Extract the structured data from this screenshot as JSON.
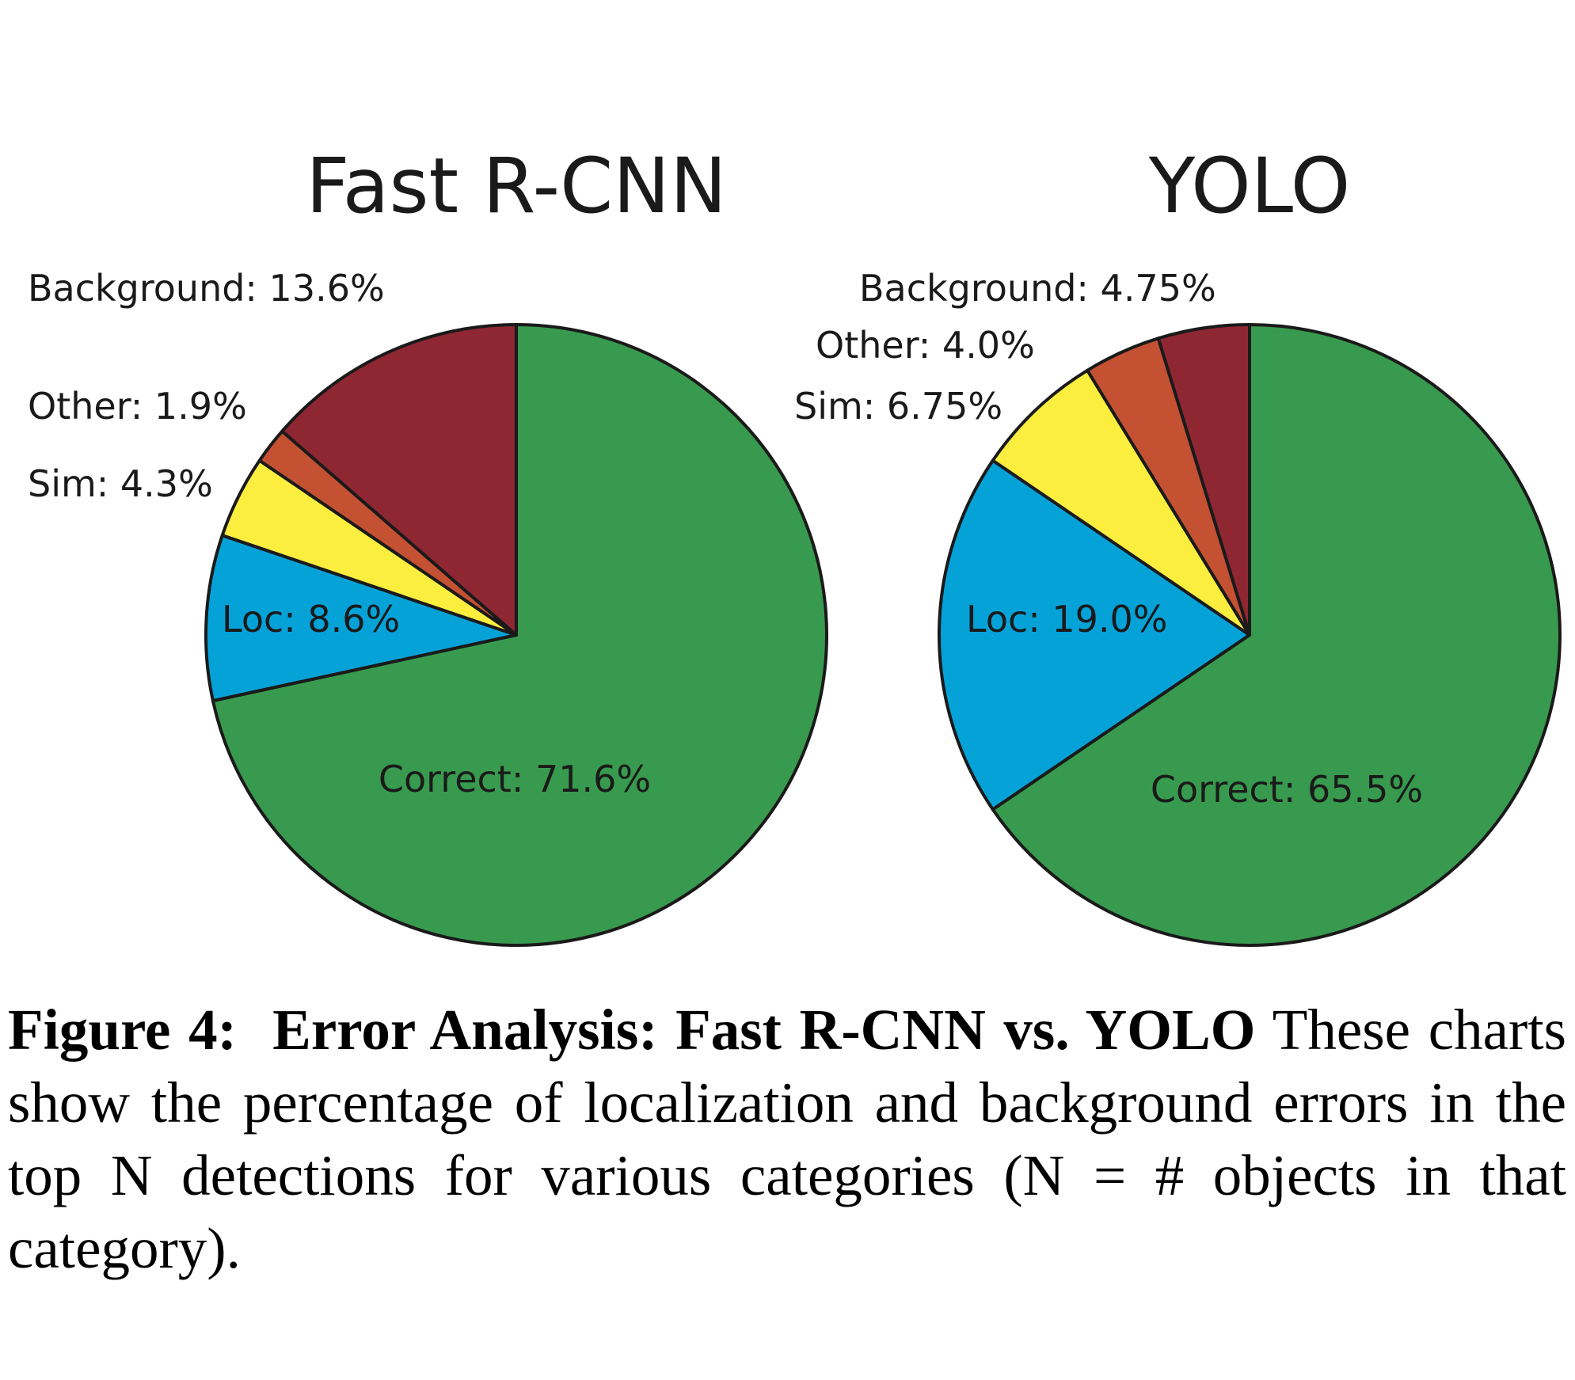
{
  "colors": {
    "Correct": "#389a4e",
    "Loc": "#05a2d8",
    "Sim": "#fcee3e",
    "Other": "#c45132",
    "Background": "#8f2733"
  },
  "chart_data": [
    {
      "type": "pie",
      "title": "Fast R-CNN",
      "slices": [
        {
          "name": "Correct",
          "value": 71.6,
          "label": "Correct: 71.6%"
        },
        {
          "name": "Loc",
          "value": 8.6,
          "label": "Loc: 8.6%"
        },
        {
          "name": "Sim",
          "value": 4.3,
          "label": "Sim: 4.3%"
        },
        {
          "name": "Other",
          "value": 1.9,
          "label": "Other: 1.9%"
        },
        {
          "name": "Background",
          "value": 13.6,
          "label": "Background: 13.6%"
        }
      ]
    },
    {
      "type": "pie",
      "title": "YOLO",
      "slices": [
        {
          "name": "Correct",
          "value": 65.5,
          "label": "Correct: 65.5%"
        },
        {
          "name": "Loc",
          "value": 19.0,
          "label": "Loc: 19.0%"
        },
        {
          "name": "Sim",
          "value": 6.75,
          "label": "Sim: 6.75%"
        },
        {
          "name": "Other",
          "value": 4.0,
          "label": "Other: 4.0%"
        },
        {
          "name": "Background",
          "value": 4.75,
          "label": "Background: 4.75%"
        }
      ]
    }
  ],
  "caption": {
    "lead": "Figure 4:",
    "head": "Error Analysis: Fast R-CNN vs. YOLO",
    "body": "These charts show the percentage of localization and background errors in the top N detections for various categories (N = # objects in that category)."
  }
}
